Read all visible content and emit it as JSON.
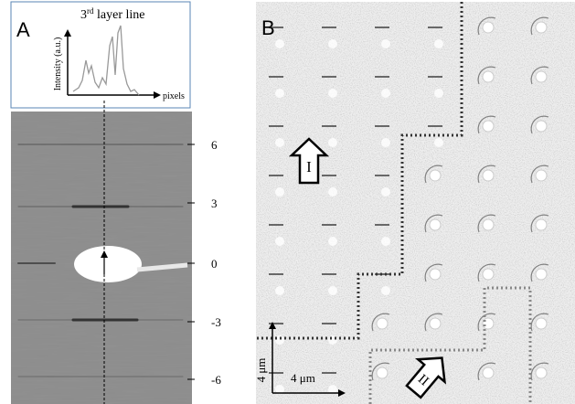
{
  "panel_a": {
    "label": "A",
    "profile": {
      "title_main": "3",
      "title_sup": "rd",
      "title_rest": " layer line",
      "y_label": "Intensity (a.u.)",
      "x_label": "pixels"
    },
    "ticks": [
      "6",
      "3",
      "0",
      "-3",
      "-6"
    ]
  },
  "panel_b": {
    "label": "B",
    "region_labels": [
      "I",
      "II"
    ],
    "scale_bar": {
      "vertical": "4 μm",
      "horizontal": "4 μm"
    }
  }
}
